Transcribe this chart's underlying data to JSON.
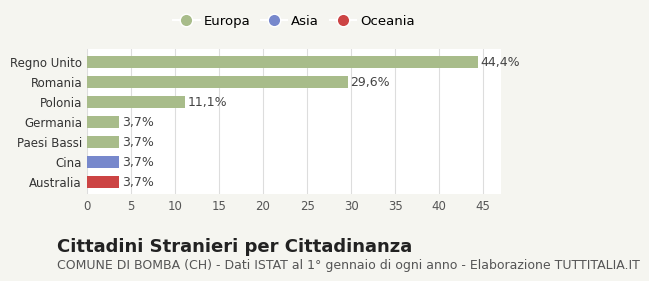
{
  "categories": [
    "Australia",
    "Cina",
    "Paesi Bassi",
    "Germania",
    "Polonia",
    "Romania",
    "Regno Unito"
  ],
  "values": [
    3.7,
    3.7,
    3.7,
    3.7,
    11.1,
    29.6,
    44.4
  ],
  "bar_colors": [
    "#cc4444",
    "#7788cc",
    "#a8bc8a",
    "#a8bc8a",
    "#a8bc8a",
    "#a8bc8a",
    "#a8bc8a"
  ],
  "labels": [
    "3,7%",
    "3,7%",
    "3,7%",
    "3,7%",
    "11,1%",
    "29,6%",
    "44,4%"
  ],
  "xlim": [
    0,
    47
  ],
  "xticks": [
    0,
    5,
    10,
    15,
    20,
    25,
    30,
    35,
    40,
    45
  ],
  "legend_items": [
    {
      "label": "Europa",
      "color": "#a8bc8a"
    },
    {
      "label": "Asia",
      "color": "#7788cc"
    },
    {
      "label": "Oceania",
      "color": "#cc4444"
    }
  ],
  "title": "Cittadini Stranieri per Cittadinanza",
  "subtitle": "COMUNE DI BOMBA (CH) - Dati ISTAT al 1° gennaio di ogni anno - Elaborazione TUTTITALIA.IT",
  "background_color": "#f5f5f0",
  "plot_background": "#ffffff",
  "grid_color": "#dddddd",
  "title_fontsize": 13,
  "subtitle_fontsize": 9,
  "label_fontsize": 9,
  "tick_fontsize": 8.5
}
